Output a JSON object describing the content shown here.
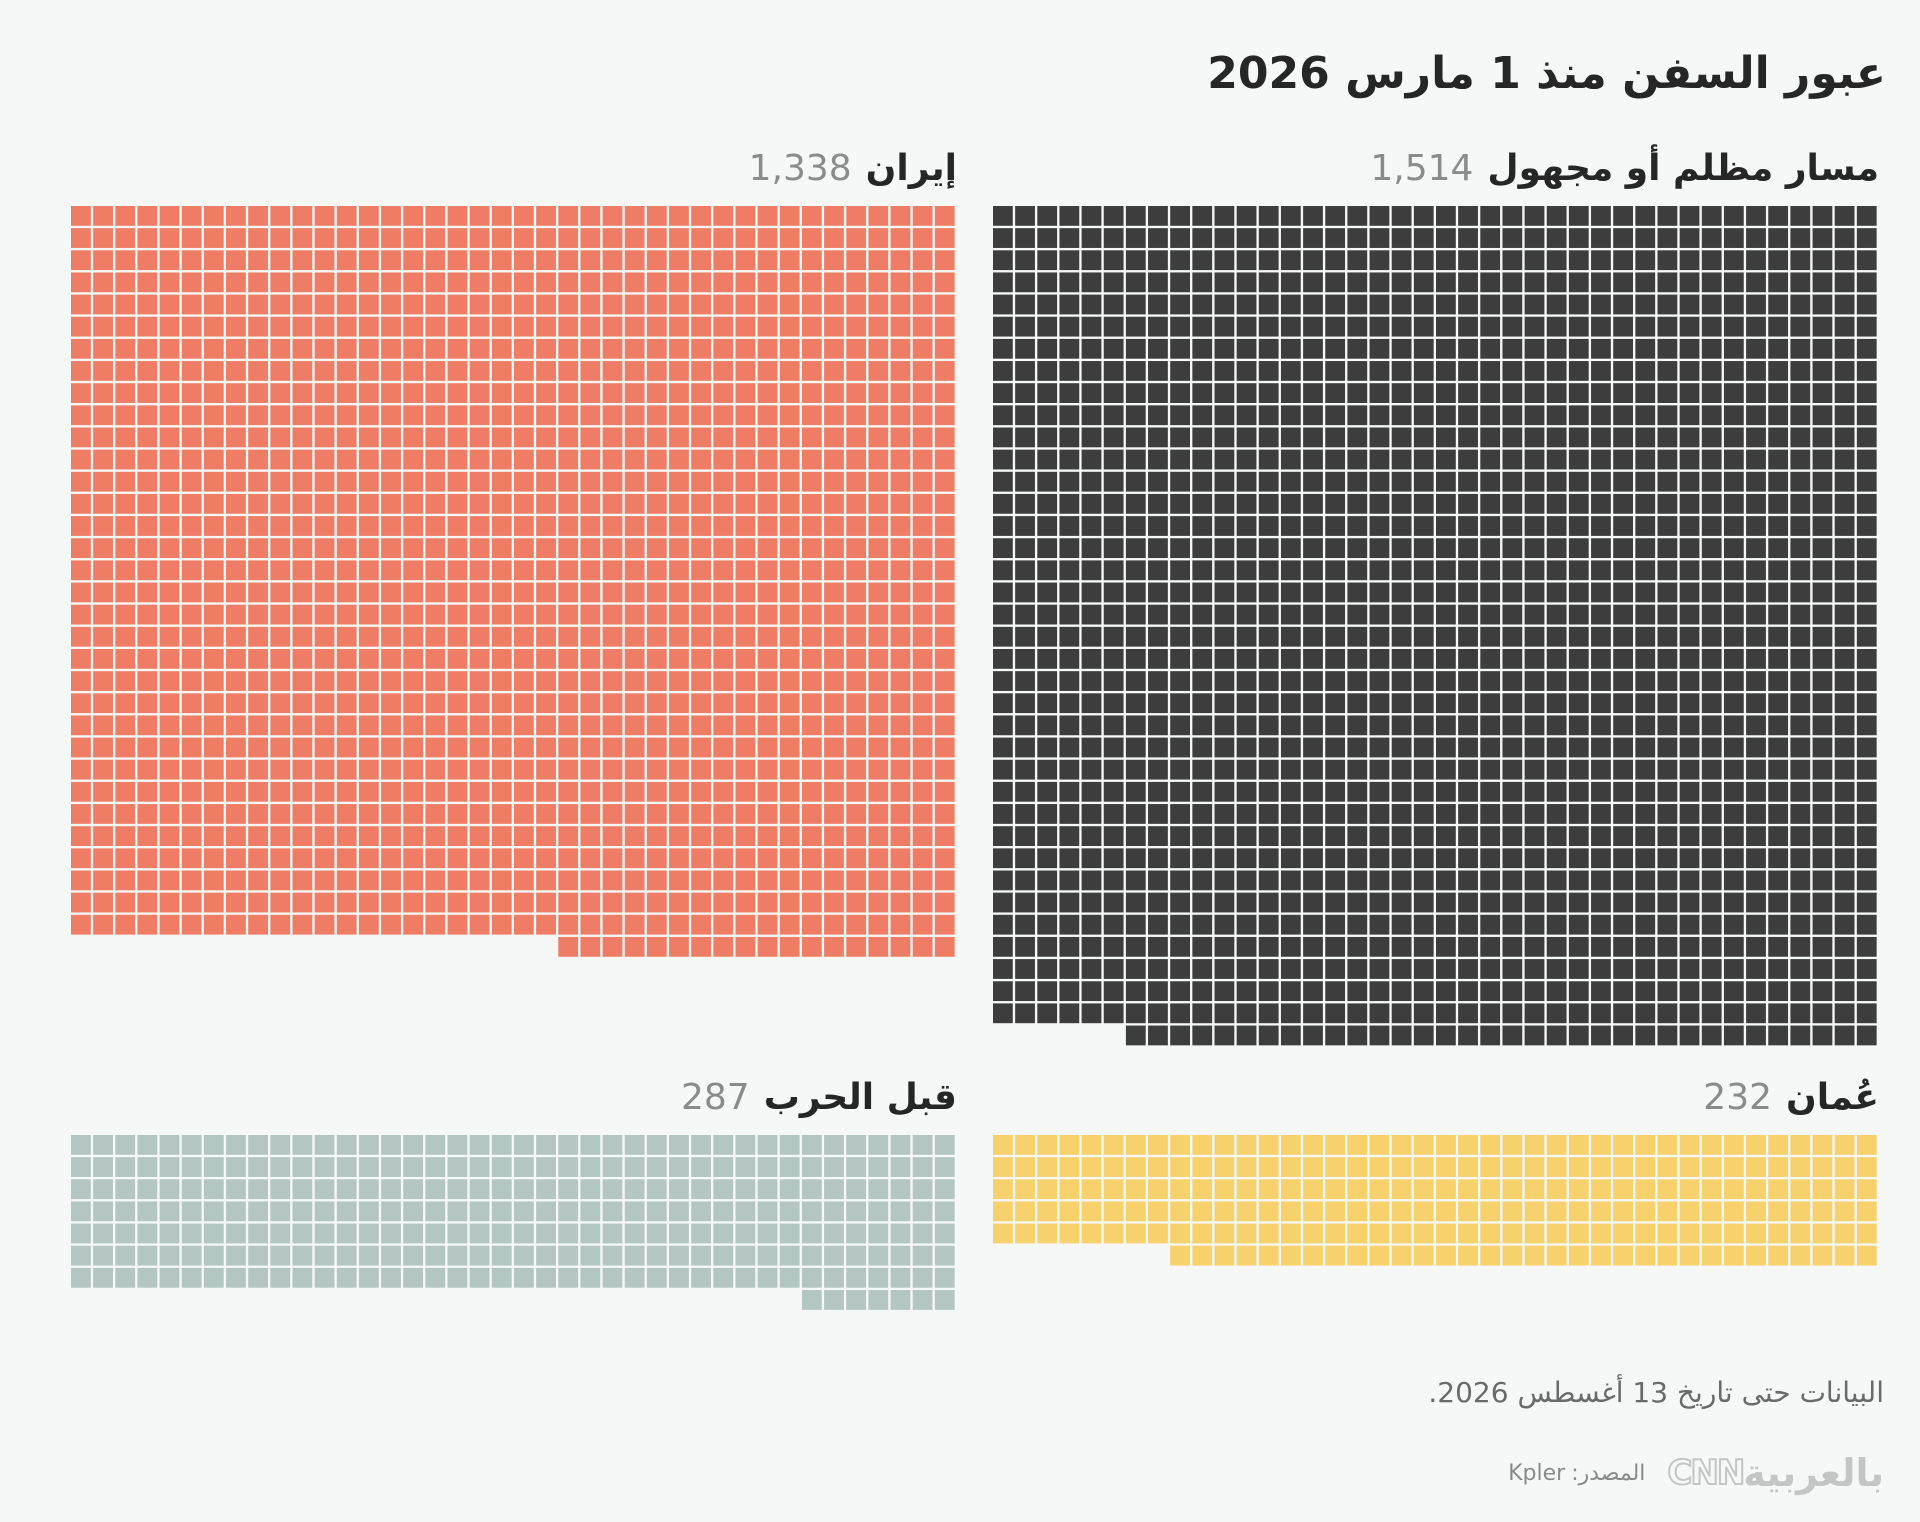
{
  "title": "عبور السفن منذ 1 مارس 2026",
  "chart_data": {
    "type": "waffle",
    "unit": "ship transit per square",
    "series": [
      {
        "label": "مسار مظلم أو مجهول",
        "count": 1514,
        "count_text": "1,514",
        "color": "#3d3d3d",
        "columns": 40
      },
      {
        "label": "إيران",
        "count": 1338,
        "count_text": "1,338",
        "color": "#ef7d65",
        "columns": 40
      },
      {
        "label": "عُمان",
        "count": 232,
        "count_text": "232",
        "color": "#f7d16b",
        "columns": 40
      },
      {
        "label": "قبل الحرب",
        "count": 287,
        "count_text": "287",
        "color": "#b3c6c2",
        "columns": 40
      }
    ]
  },
  "note": "البيانات حتى تاريخ 13 أغسطس 2026.",
  "footer": {
    "source_label": "المصدر:",
    "source_value": "Kpler",
    "logo_arabic": "بالعربية",
    "logo_cnn": "CNN"
  }
}
